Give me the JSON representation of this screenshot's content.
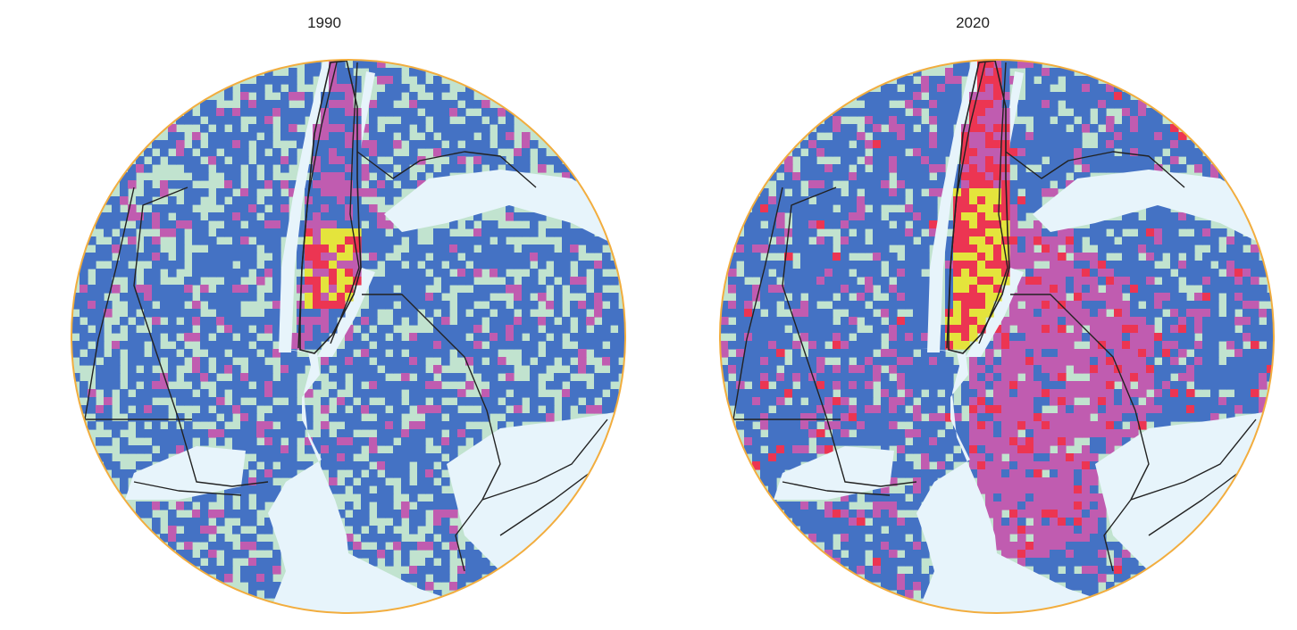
{
  "panels": [
    {
      "title": "1990",
      "map_id": "map-1990",
      "year_profile": "early"
    },
    {
      "title": "2020",
      "map_id": "map-2020",
      "year_profile": "late"
    }
  ],
  "colors": {
    "water": "#e7f4fb",
    "park": "#c1e3cf",
    "tract_low": "#4472c4",
    "tract_mid": "#c05cb0",
    "tract_high": "#ec3552",
    "tract_highest": "#e4e43c",
    "boundary": "#222222",
    "rim": "#f2ad3e"
  },
  "legend_note": ""
}
